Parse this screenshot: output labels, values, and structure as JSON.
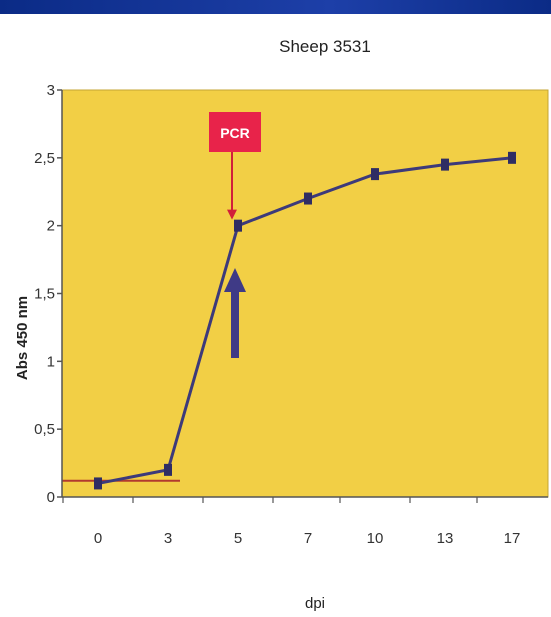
{
  "colors": {
    "plot_bg": "#f2cf45",
    "plot_border": "#c4a434",
    "series": "#3d3a7a",
    "marker": "#2f2d63",
    "pcr_box": "#e8234a",
    "pcr_arrow": "#d11f3a",
    "blue_arrow": "#3f3a86",
    "baseline": "#b23a2e"
  },
  "chart_data": {
    "type": "line",
    "title": "Sheep 3531",
    "xlabel": "dpi",
    "ylabel": "Abs 450 nm",
    "categories": [
      "0",
      "3",
      "5",
      "7",
      "10",
      "13",
      "17"
    ],
    "series": [
      {
        "values": [
          0.1,
          0.2,
          2.0,
          2.2,
          2.38,
          2.45,
          2.5
        ]
      }
    ],
    "ylim": [
      0,
      3
    ],
    "yticks": [
      0,
      0.5,
      1,
      1.5,
      2,
      2.5,
      3
    ],
    "ytick_labels": [
      "0",
      "0,5",
      "1",
      "1,5",
      "2",
      "2,5",
      "3"
    ],
    "baseline_value": 0.12,
    "grid": false,
    "annotations": {
      "pcr_label": "PCR",
      "pcr_category_index": 2,
      "arrow_category_index": 2
    }
  }
}
